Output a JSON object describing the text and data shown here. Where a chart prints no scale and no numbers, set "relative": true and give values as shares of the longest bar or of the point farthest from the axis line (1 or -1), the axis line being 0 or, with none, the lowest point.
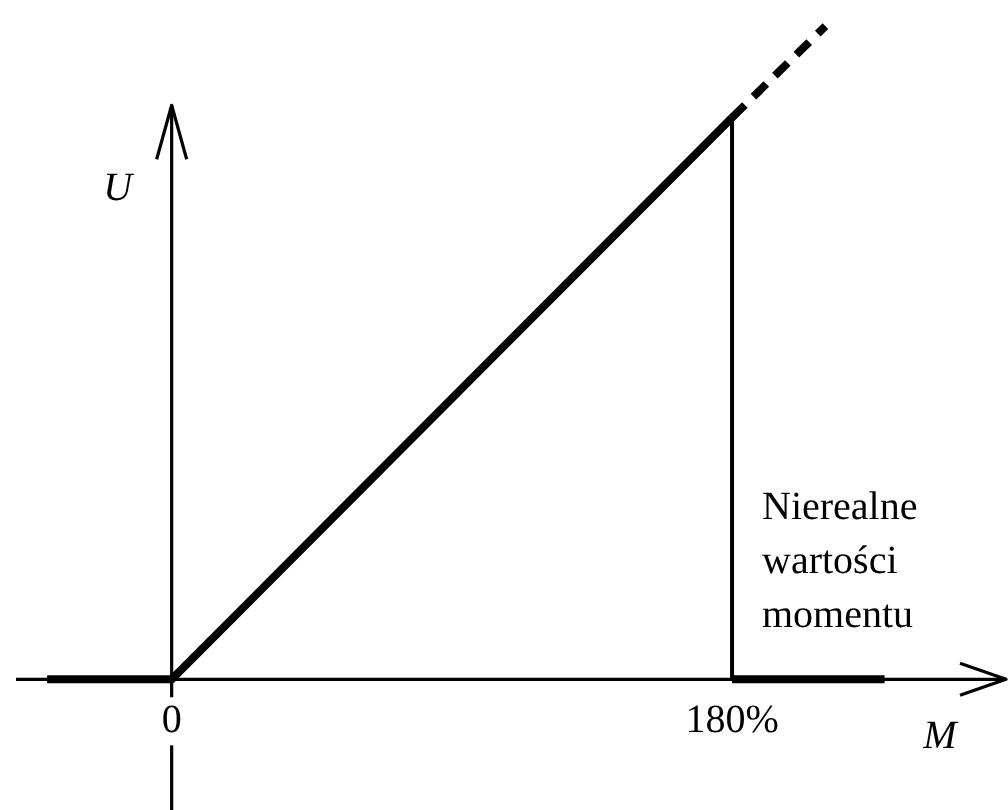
{
  "chart_data": {
    "type": "line",
    "relative": true,
    "xlabel": "M",
    "ylabel": "U",
    "line_style": "solid",
    "xlim": [
      -50,
      268
    ],
    "xticks": [
      0,
      {
        "value": 180,
        "label": "180%"
      }
    ],
    "series": [
      {
        "color": "#000000",
        "x": [
          -40,
          0,
          180
        ],
        "values": [
          0,
          0,
          0.86
        ]
      },
      {
        "color": "#000000",
        "x": [
          180,
          210
        ],
        "values": [
          0.86,
          1
        ],
        "line_style": "dashed"
      },
      {
        "color": "#000000",
        "x": [
          180,
          229
        ],
        "values": [
          0,
          0
        ]
      }
    ],
    "ref_lines": [
      {
        "axis": "x",
        "value": 180,
        "color": "#000000"
      }
    ],
    "annotations": [
      "Nierealne wartości momentu"
    ]
  }
}
